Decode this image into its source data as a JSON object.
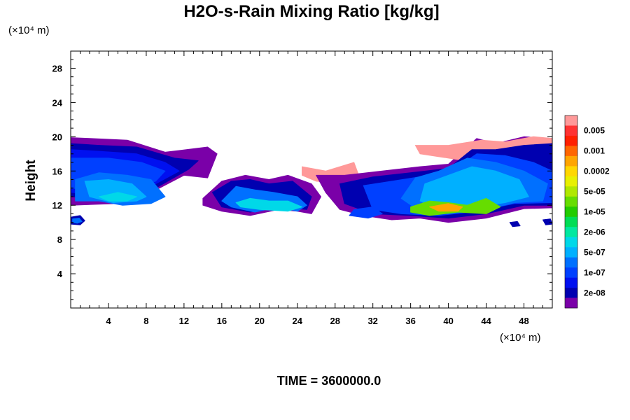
{
  "chart_data": {
    "type": "heatmap",
    "title": "H2O-s-Rain Mixing Ratio [kg/kg]",
    "ylabel": "Height",
    "xlabel": "",
    "x_unit": "(×10⁴ m)",
    "y_unit": "(×10⁴ m)",
    "xlim": [
      0,
      51
    ],
    "ylim": [
      0,
      30
    ],
    "x_ticks": [
      4,
      8,
      12,
      16,
      20,
      24,
      28,
      32,
      36,
      40,
      44,
      48
    ],
    "y_ticks": [
      4,
      8,
      12,
      16,
      20,
      24,
      28
    ],
    "colorbar": {
      "labels": [
        "0.005",
        "0.001",
        "0.0002",
        "5e-05",
        "1e-05",
        "2e-06",
        "5e-07",
        "1e-07",
        "2e-08"
      ],
      "colors": [
        "#ff9999",
        "#ff3333",
        "#ff2000",
        "#ff6600",
        "#ffa500",
        "#ffd700",
        "#e8f000",
        "#b0e800",
        "#66dd00",
        "#22cc00",
        "#00dd55",
        "#00e8a0",
        "#00d8e8",
        "#00b0ff",
        "#0070ff",
        "#0040ff",
        "#0010f0",
        "#0000b0",
        "#7a00a8"
      ]
    },
    "regions": [
      {
        "level": 0,
        "x": [
          0.0,
          2.0,
          6.0,
          10.0,
          14.5,
          15.5,
          14.5,
          12.0,
          8.0,
          5.0,
          0.0
        ],
        "y": [
          19.9,
          19.8,
          19.6,
          18.2,
          18.8,
          18.0,
          15.2,
          15.5,
          13.2,
          12.2,
          12.0
        ]
      },
      {
        "level": 1,
        "x": [
          0.0,
          3.0,
          7.0,
          11.0,
          13.5,
          12.5,
          9.0,
          5.0,
          0.0
        ],
        "y": [
          19.2,
          19.0,
          18.8,
          17.5,
          17.2,
          16.2,
          14.0,
          12.8,
          13.0
        ]
      },
      {
        "level": 2,
        "x": [
          0.0,
          3.0,
          7.0,
          10.0,
          11.5,
          9.0,
          5.0,
          0.0
        ],
        "y": [
          18.5,
          18.3,
          18.0,
          17.0,
          16.0,
          14.5,
          13.0,
          13.5
        ]
      },
      {
        "level": 3,
        "x": [
          0.0,
          4.0,
          7.5,
          10.0,
          9.0,
          5.0,
          0.0
        ],
        "y": [
          17.5,
          17.5,
          17.0,
          16.0,
          14.8,
          13.5,
          14.0
        ]
      },
      {
        "level": 4,
        "x": [
          0.5,
          3.0,
          6.0,
          8.5,
          10.0,
          8.5,
          5.5,
          3.0,
          0.5
        ],
        "y": [
          15.0,
          15.8,
          15.5,
          15.0,
          13.0,
          12.2,
          12.0,
          12.5,
          12.5
        ]
      },
      {
        "level": 5,
        "x": [
          1.5,
          4.0,
          6.5,
          8.0,
          7.0,
          4.5,
          2.0
        ],
        "y": [
          14.8,
          15.0,
          14.5,
          13.0,
          12.5,
          12.3,
          13.0
        ]
      },
      {
        "level": 6,
        "x": [
          3.0,
          5.0,
          7.0,
          6.0,
          4.0
        ],
        "y": [
          13.0,
          13.5,
          13.0,
          12.5,
          12.5
        ]
      },
      {
        "level": 0,
        "x": [
          14.0,
          16.0,
          18.5,
          21.0,
          23.0,
          25.5,
          26.5,
          25.5,
          24.0,
          22.0,
          19.0,
          16.0,
          14.0
        ],
        "y": [
          12.8,
          14.8,
          15.5,
          15.0,
          15.5,
          14.5,
          13.0,
          11.0,
          11.3,
          11.5,
          10.8,
          11.3,
          12.0
        ]
      },
      {
        "level": 1,
        "x": [
          15.0,
          17.0,
          19.0,
          21.0,
          23.5,
          25.5,
          25.0,
          22.0,
          19.0,
          16.0
        ],
        "y": [
          13.5,
          14.8,
          15.0,
          14.5,
          14.8,
          13.0,
          11.5,
          11.8,
          11.2,
          11.8
        ]
      },
      {
        "level": 4,
        "x": [
          16.0,
          17.5,
          19.5,
          21.5,
          24.0,
          25.0,
          24.0,
          22.0,
          19.5,
          17.0
        ],
        "y": [
          12.5,
          14.2,
          13.8,
          13.5,
          13.0,
          12.0,
          11.3,
          11.8,
          11.2,
          11.8
        ]
      },
      {
        "level": 6,
        "x": [
          17.5,
          19.0,
          21.0,
          23.0,
          24.5,
          23.0,
          20.0,
          18.0
        ],
        "y": [
          12.3,
          12.8,
          12.5,
          12.5,
          11.8,
          11.3,
          11.5,
          11.8
        ]
      },
      {
        "level": 18,
        "x": [
          24.5,
          27.0,
          30.0,
          30.5,
          29.0,
          26.0,
          24.5
        ],
        "y": [
          16.5,
          16.0,
          17.0,
          15.5,
          14.5,
          14.8,
          15.5
        ]
      },
      {
        "level": 0,
        "x": [
          26.0,
          29.0,
          33.0,
          37.0,
          40.0,
          43.0,
          45.0,
          48.0,
          51.0,
          51.0,
          48.0,
          44.0,
          40.0,
          37.0,
          34.0,
          31.0,
          28.5,
          27.0
        ],
        "y": [
          15.5,
          15.5,
          16.0,
          16.5,
          16.8,
          19.8,
          19.2,
          20.0,
          19.8,
          11.7,
          11.6,
          10.5,
          10.0,
          10.5,
          10.3,
          10.8,
          11.5,
          13.5
        ]
      },
      {
        "level": 18,
        "x": [
          36.5,
          40.0,
          43.5,
          46.0,
          49.0,
          51.0,
          51.0,
          47.0,
          43.0,
          40.0,
          37.0
        ],
        "y": [
          19.0,
          19.0,
          19.6,
          19.4,
          20.0,
          19.8,
          19.0,
          18.2,
          17.0,
          17.5,
          18.0
        ]
      },
      {
        "level": 1,
        "x": [
          28.5,
          32.0,
          36.0,
          40.0,
          42.5,
          45.0,
          48.0,
          51.0,
          51.0,
          48.0,
          44.0,
          40.0,
          36.0,
          32.0,
          29.0
        ],
        "y": [
          14.5,
          15.3,
          15.8,
          16.3,
          18.5,
          18.5,
          19.0,
          19.2,
          12.0,
          12.0,
          11.0,
          10.5,
          10.8,
          11.0,
          12.2
        ]
      },
      {
        "level": 3,
        "x": [
          31.0,
          34.0,
          38.0,
          41.0,
          43.0,
          46.0,
          49.0,
          51.0,
          51.0,
          47.0,
          43.0,
          39.0,
          35.0,
          32.0
        ],
        "y": [
          14.3,
          14.8,
          15.5,
          16.5,
          18.0,
          17.8,
          17.0,
          16.0,
          12.3,
          12.2,
          11.3,
          10.8,
          11.0,
          11.5
        ]
      },
      {
        "level": 4,
        "x": [
          36.5,
          39.0,
          42.0,
          45.0,
          48.0,
          50.5,
          50.0,
          47.0,
          44.0,
          40.0,
          37.0,
          35.0
        ],
        "y": [
          15.2,
          16.0,
          17.5,
          17.0,
          16.0,
          14.5,
          12.5,
          12.3,
          11.5,
          11.0,
          11.3,
          12.8
        ]
      },
      {
        "level": 5,
        "x": [
          37.5,
          40.0,
          42.5,
          45.0,
          47.5,
          48.5,
          46.0,
          43.0,
          39.5,
          37.0
        ],
        "y": [
          14.5,
          15.5,
          16.5,
          16.0,
          15.0,
          13.0,
          12.3,
          11.8,
          11.3,
          12.5
        ]
      },
      {
        "level": 10,
        "x": [
          36.0,
          38.0,
          40.0,
          42.0,
          44.0,
          45.5,
          44.0,
          41.0,
          38.0,
          36.0
        ],
        "y": [
          11.8,
          12.5,
          12.3,
          12.0,
          12.8,
          11.8,
          11.0,
          11.2,
          10.8,
          11.2
        ]
      },
      {
        "level": 14,
        "x": [
          38.0,
          40.0,
          41.5,
          41.0,
          39.0
        ],
        "y": [
          11.8,
          12.2,
          11.8,
          11.3,
          11.3
        ]
      },
      {
        "level": 3,
        "x": [
          30.0,
          32.0,
          33.0,
          31.5,
          29.5
        ],
        "y": [
          11.5,
          11.8,
          11.0,
          10.5,
          10.8
        ]
      },
      {
        "level": 1,
        "x": [
          0.0,
          1.0,
          1.5,
          1.0,
          0.0
        ],
        "y": [
          10.6,
          10.8,
          10.2,
          9.7,
          9.8
        ]
      },
      {
        "level": 4,
        "x": [
          0.2,
          0.9,
          1.2,
          0.7,
          0.2
        ],
        "y": [
          10.4,
          10.5,
          10.1,
          9.9,
          10.0
        ]
      },
      {
        "level": 1,
        "x": [
          46.5,
          47.3,
          47.6,
          46.8
        ],
        "y": [
          10.0,
          10.1,
          9.6,
          9.5
        ]
      },
      {
        "level": 1,
        "x": [
          50.0,
          50.8,
          51.0,
          50.3
        ],
        "y": [
          10.3,
          10.4,
          9.8,
          9.7
        ]
      }
    ]
  },
  "footer": {
    "time_label": "TIME = 3600000.0"
  }
}
